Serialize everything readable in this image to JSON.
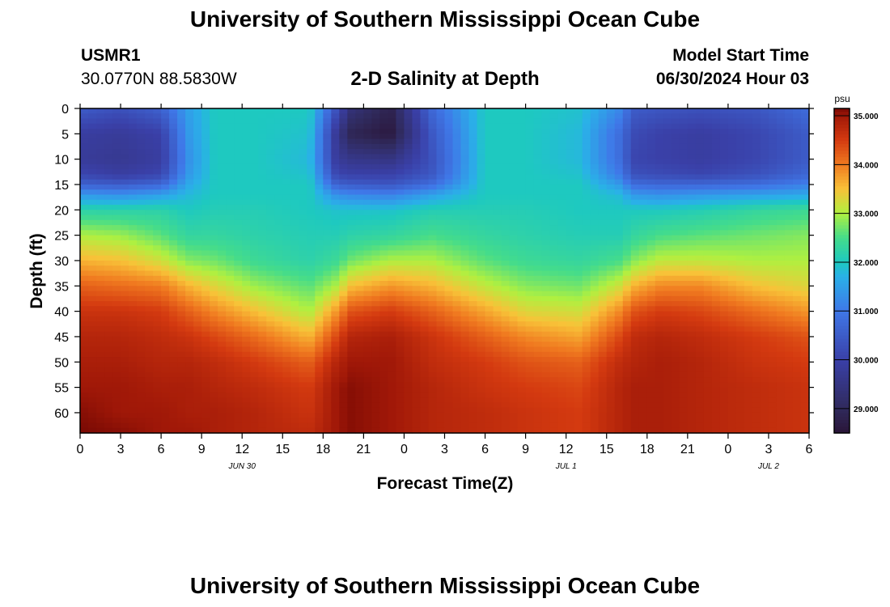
{
  "page": {
    "title": "University of Southern Mississippi Ocean Cube",
    "station_id": "USMR1",
    "station_coords": "30.0770N  88.5830W",
    "plot_title": "2-D Salinity at Depth",
    "model_start_label": "Model Start Time",
    "model_start_value": "06/30/2024 Hour 03",
    "footer_title": "University of Southern Mississippi Ocean Cube"
  },
  "chart_data": {
    "type": "heatmap",
    "title": "2-D Salinity at Depth",
    "xlabel": "Forecast Time(Z)",
    "ylabel": "Depth (ft)",
    "x_tick_labels": [
      "0",
      "3",
      "6",
      "9",
      "12",
      "15",
      "18",
      "21",
      "0",
      "3",
      "6",
      "9",
      "12",
      "15",
      "18",
      "21",
      "0",
      "3",
      "6"
    ],
    "x_date_labels": [
      {
        "label": "JUN 30",
        "tick_index": 4
      },
      {
        "label": "JUL 1",
        "tick_index": 12
      },
      {
        "label": "JUL 2",
        "tick_index": 17
      }
    ],
    "x_range_hours": [
      0,
      54
    ],
    "y_ticks": [
      0,
      5,
      10,
      15,
      20,
      25,
      30,
      35,
      40,
      45,
      50,
      55,
      60
    ],
    "y_range_ft": [
      0,
      64
    ],
    "y_inverted": true,
    "colorbar": {
      "unit": "psu",
      "min": 28.5,
      "max": 35.15,
      "ticks": [
        "29.000",
        "30.000",
        "31.000",
        "32.000",
        "33.000",
        "34.000",
        "35.000"
      ],
      "tick_values": [
        29,
        30,
        31,
        32,
        33,
        34,
        35
      ],
      "colormap": [
        {
          "v": 28.5,
          "c": "#2a1538"
        },
        {
          "v": 29.0,
          "c": "#302a5c"
        },
        {
          "v": 30.0,
          "c": "#3a40a8"
        },
        {
          "v": 31.0,
          "c": "#3f78e8"
        },
        {
          "v": 31.7,
          "c": "#2ab0e8"
        },
        {
          "v": 32.0,
          "c": "#1ec9c0"
        },
        {
          "v": 32.5,
          "c": "#45dc8a"
        },
        {
          "v": 33.0,
          "c": "#b0f040"
        },
        {
          "v": 33.5,
          "c": "#f8c238"
        },
        {
          "v": 34.0,
          "c": "#f07a20"
        },
        {
          "v": 34.5,
          "c": "#d43a10"
        },
        {
          "v": 35.0,
          "c": "#a01808"
        },
        {
          "v": 35.15,
          "c": "#7a0a04"
        }
      ]
    },
    "profile_hours": [
      0,
      3,
      6,
      8,
      10,
      13,
      17,
      19,
      20,
      23,
      26,
      30,
      33,
      37,
      40,
      41,
      43,
      46,
      50,
      54
    ],
    "profile_depths_ft": [
      0,
      5,
      10,
      13,
      15,
      17,
      20,
      25,
      30,
      35,
      40,
      45,
      50,
      55,
      60,
      64
    ],
    "salinity_profiles": [
      [
        30.5,
        29.9,
        29.8,
        30.1,
        30.6,
        31.4,
        32.2,
        33.0,
        33.6,
        34.2,
        34.6,
        34.8,
        34.9,
        35.0,
        35.1,
        35.15
      ],
      [
        30.3,
        29.8,
        29.7,
        29.9,
        30.5,
        31.3,
        32.2,
        32.9,
        33.5,
        34.1,
        34.6,
        34.8,
        34.9,
        35.0,
        35.0,
        35.1
      ],
      [
        30.6,
        30.0,
        29.9,
        30.1,
        30.7,
        31.5,
        32.2,
        32.6,
        33.2,
        34.0,
        34.5,
        34.7,
        34.8,
        34.9,
        35.0,
        35.0
      ],
      [
        31.5,
        31.4,
        31.3,
        31.4,
        31.6,
        31.8,
        32.0,
        32.3,
        32.8,
        33.6,
        34.2,
        34.6,
        34.8,
        34.9,
        34.9,
        35.0
      ],
      [
        32.0,
        32.0,
        32.0,
        32.0,
        32.0,
        32.0,
        32.1,
        32.3,
        32.7,
        33.3,
        33.9,
        34.4,
        34.7,
        34.8,
        34.9,
        34.9
      ],
      [
        32.0,
        32.0,
        32.0,
        32.0,
        32.0,
        32.0,
        32.1,
        32.2,
        32.4,
        32.9,
        33.5,
        34.1,
        34.5,
        34.7,
        34.8,
        34.8
      ],
      [
        32.0,
        31.9,
        31.8,
        31.9,
        32.0,
        32.0,
        32.0,
        32.1,
        32.2,
        32.6,
        33.0,
        33.6,
        34.2,
        34.5,
        34.6,
        34.7
      ],
      [
        30.3,
        29.7,
        29.8,
        30.1,
        30.6,
        31.3,
        31.9,
        32.1,
        32.4,
        33.0,
        33.8,
        34.4,
        34.8,
        35.0,
        35.0,
        35.0
      ],
      [
        29.4,
        28.9,
        29.6,
        30.0,
        30.5,
        31.2,
        31.9,
        32.2,
        32.7,
        33.5,
        34.3,
        34.8,
        35.0,
        35.1,
        35.1,
        35.1
      ],
      [
        28.8,
        28.6,
        29.5,
        30.0,
        30.4,
        31.1,
        31.9,
        32.3,
        33.0,
        33.8,
        34.5,
        34.9,
        35.0,
        35.0,
        35.0,
        35.0
      ],
      [
        30.7,
        30.4,
        30.3,
        30.4,
        30.8,
        31.5,
        32.1,
        32.5,
        33.0,
        33.6,
        34.2,
        34.6,
        34.7,
        34.8,
        34.8,
        34.8
      ],
      [
        32.0,
        32.0,
        32.0,
        32.0,
        32.0,
        32.0,
        32.1,
        32.3,
        32.6,
        33.1,
        33.7,
        34.2,
        34.5,
        34.6,
        34.7,
        34.7
      ],
      [
        32.0,
        32.0,
        32.0,
        32.0,
        32.0,
        32.0,
        32.1,
        32.2,
        32.4,
        32.8,
        33.3,
        33.9,
        34.3,
        34.5,
        34.6,
        34.6
      ],
      [
        31.9,
        31.8,
        31.8,
        31.9,
        32.0,
        32.0,
        32.0,
        32.1,
        32.3,
        32.7,
        33.2,
        33.7,
        34.2,
        34.4,
        34.5,
        34.5
      ],
      [
        31.2,
        30.8,
        30.8,
        31.0,
        31.4,
        31.8,
        32.0,
        32.1,
        32.5,
        33.2,
        33.9,
        34.4,
        34.7,
        34.8,
        34.8,
        34.8
      ],
      [
        30.5,
        30.2,
        30.1,
        30.3,
        30.8,
        31.4,
        32.0,
        32.3,
        32.8,
        33.6,
        34.3,
        34.7,
        34.8,
        34.9,
        34.9,
        34.9
      ],
      [
        30.4,
        30.0,
        30.0,
        30.2,
        30.7,
        31.3,
        32.0,
        32.5,
        33.1,
        33.9,
        34.5,
        34.8,
        34.9,
        34.9,
        34.9,
        34.9
      ],
      [
        30.3,
        29.9,
        29.9,
        30.1,
        30.7,
        31.4,
        32.1,
        32.6,
        33.1,
        33.9,
        34.4,
        34.7,
        34.8,
        34.8,
        34.8,
        34.8
      ],
      [
        30.4,
        30.1,
        30.1,
        30.3,
        30.8,
        31.5,
        32.3,
        32.7,
        33.0,
        33.5,
        34.1,
        34.5,
        34.6,
        34.7,
        34.7,
        34.7
      ],
      [
        30.8,
        30.5,
        30.5,
        30.7,
        31.1,
        31.6,
        32.4,
        32.8,
        33.0,
        33.3,
        33.8,
        34.3,
        34.5,
        34.6,
        34.6,
        34.6
      ]
    ]
  }
}
